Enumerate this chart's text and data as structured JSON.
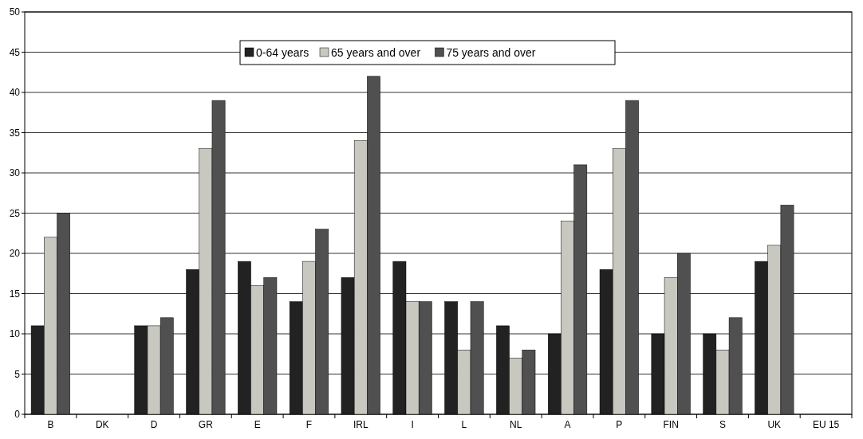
{
  "chart_data": {
    "type": "bar",
    "categories": [
      "B",
      "DK",
      "D",
      "GR",
      "E",
      "F",
      "IRL",
      "I",
      "L",
      "NL",
      "A",
      "P",
      "FIN",
      "S",
      "UK",
      "EU 15"
    ],
    "series": [
      {
        "name": "0-64 years",
        "color": "#222222",
        "values": [
          11,
          null,
          11,
          18,
          19,
          14,
          17,
          19,
          14,
          11,
          10,
          18,
          10,
          10,
          19,
          null
        ]
      },
      {
        "name": "65 years and over",
        "color": "#c8c8c0",
        "values": [
          22,
          null,
          11,
          33,
          16,
          19,
          34,
          14,
          8,
          7,
          24,
          33,
          17,
          8,
          21,
          null
        ]
      },
      {
        "name": "75 years and over",
        "color": "#505050",
        "values": [
          25,
          null,
          12,
          39,
          17,
          23,
          42,
          14,
          14,
          8,
          31,
          39,
          20,
          12,
          26,
          null
        ]
      }
    ],
    "ylim": [
      0,
      50
    ],
    "yticks": [
      0,
      5,
      10,
      15,
      20,
      25,
      30,
      35,
      40,
      45,
      50
    ],
    "grid": "y",
    "legend": "top"
  }
}
